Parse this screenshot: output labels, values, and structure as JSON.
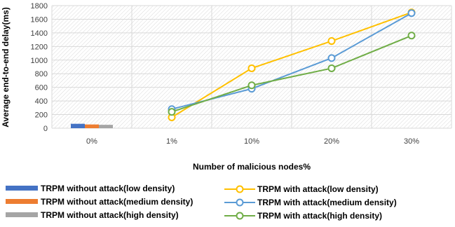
{
  "chart_data": {
    "type": "bar+line",
    "title": "",
    "xlabel": "Number of malicious nodes%",
    "ylabel": "Average end-to-end delay(ms)",
    "categories": [
      "0%",
      "1%",
      "10%",
      "20%",
      "30%"
    ],
    "ylim": [
      0,
      1800
    ],
    "yticks": [
      0,
      200,
      400,
      600,
      800,
      1000,
      1200,
      1400,
      1600,
      1800
    ],
    "grid": true,
    "legend_position": "bottom",
    "bar_series": [
      {
        "name": "TRPM without attack(low density)",
        "color": "#4472C4",
        "values": [
          65,
          null,
          null,
          null,
          null
        ]
      },
      {
        "name": "TRPM without attack(medium density)",
        "color": "#ED7D31",
        "values": [
          55,
          null,
          null,
          null,
          null
        ]
      },
      {
        "name": "TRPM without attack(high density)",
        "color": "#A5A5A5",
        "values": [
          50,
          null,
          null,
          null,
          null
        ]
      }
    ],
    "line_series": [
      {
        "name": "TRPM with attack(low density)",
        "color": "#FFC000",
        "values": [
          null,
          160,
          880,
          1280,
          1700
        ]
      },
      {
        "name": "TRPM with attack(medium density)",
        "color": "#5B9BD5",
        "values": [
          null,
          280,
          580,
          1030,
          1690
        ]
      },
      {
        "name": "TRPM with attack(high density)",
        "color": "#70AD47",
        "values": [
          null,
          240,
          630,
          880,
          1360
        ]
      }
    ]
  }
}
